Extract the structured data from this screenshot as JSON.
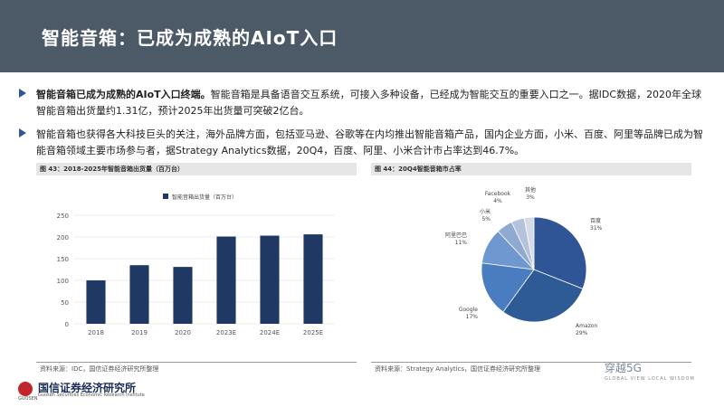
{
  "header": {
    "title": "智能音箱：已成为成熟的AIoT入口"
  },
  "bullets": [
    {
      "bold": "智能音箱已成为成熟的AIoT入口终端。",
      "text": "智能音箱是具备语音交互系统，可接入多种设备，已经成为智能交互的重要入口之一。据IDC数据，2020年全球智能音箱出货量约1.31亿，预计2025年出货量可突破2亿台。"
    },
    {
      "bold": "",
      "text": "智能音箱也获得各大科技巨头的关注，海外品牌方面，包括亚马逊、谷歌等在内均推出智能音箱产品，国内企业方面，小米、百度、阿里等品牌已成为智能音箱领域主要市场参与者，据Strategy Analytics数据，20Q4，百度、阿里、小米合计市占率达到46.7%。"
    }
  ],
  "left_panel": {
    "title": "图 43：2018-2025年智能音箱出货量（百万台）",
    "source": "资料来源：IDC，国信证券经济研究所整理"
  },
  "right_panel": {
    "title": "图 44：20Q4智能音箱市占率",
    "source": "资料来源：Strategy Analytics，国信证券经济研究所整理"
  },
  "chart_data": [
    {
      "type": "bar",
      "categories": [
        "2018",
        "2019",
        "2020",
        "2023E",
        "2024E",
        "2025E"
      ],
      "series": [
        {
          "name": "智能音箱出货量（百万台）",
          "values": [
            100,
            135,
            131,
            201,
            203,
            206
          ]
        }
      ],
      "ylim": [
        0,
        250
      ],
      "yticks": [
        0,
        50,
        100,
        150,
        200,
        250
      ],
      "grid": true,
      "legend": "top-center",
      "color": "#1f3864"
    },
    {
      "type": "pie",
      "slices": [
        {
          "label": "百度",
          "value": 31,
          "pct_label": "31%",
          "color": "#2f5597"
        },
        {
          "label": "Amazon",
          "value": 29,
          "pct_label": "29%",
          "color": "#2e5a96"
        },
        {
          "label": "Google",
          "value": 17,
          "pct_label": "17%",
          "color": "#4a7cc0"
        },
        {
          "label": "阿里巴巴",
          "value": 11,
          "pct_label": "11%",
          "color": "#6f97d0"
        },
        {
          "label": "小米",
          "value": 5,
          "pct_label": "5%",
          "color": "#8fa9cf"
        },
        {
          "label": "Facebook",
          "value": 4,
          "pct_label": "4%",
          "color": "#b4c3db"
        },
        {
          "label": "其他",
          "value": 3,
          "pct_label": "3%",
          "color": "#d4dbe8"
        }
      ]
    }
  ],
  "footer": {
    "org_cn": "国信证券经济研究所",
    "org_en": "Guosen Securities Economic Research Institute",
    "logo_text": "GUOSEN"
  },
  "watermark": {
    "text": "穿越5G",
    "sub": "GLOBAL VIEW  LOCAL WISDOM"
  }
}
